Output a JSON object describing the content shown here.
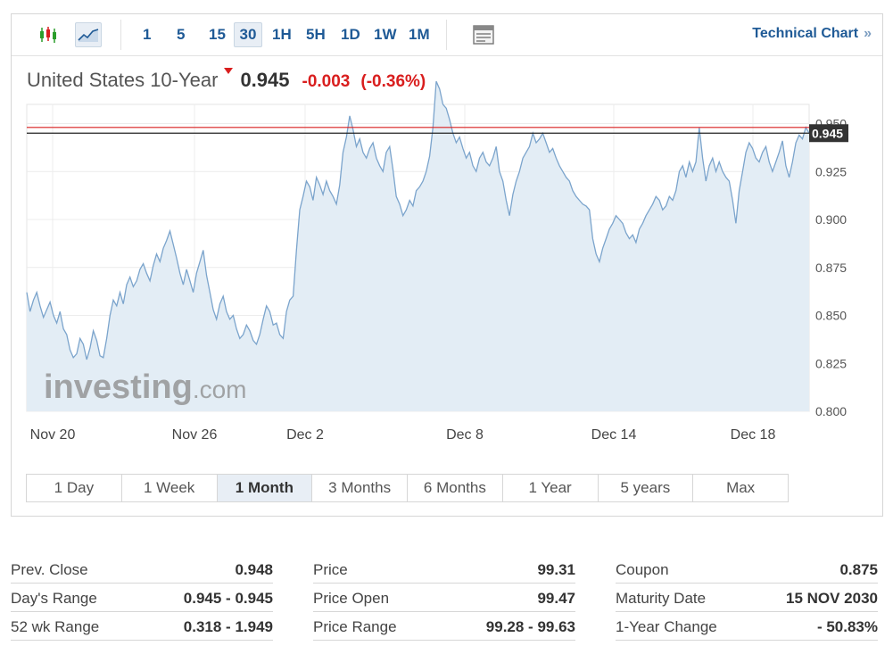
{
  "toolbar": {
    "icons": [
      "candlestick-icon",
      "line-chart-icon"
    ],
    "timeframes": [
      "1",
      "5",
      "15",
      "30",
      "1H",
      "5H",
      "1D",
      "1W",
      "1M"
    ],
    "active_timeframe": "30",
    "tech_link": "Technical Chart",
    "tech_chevron": "»"
  },
  "instrument": {
    "name": "United States 10-Year",
    "price": "0.945",
    "change": "-0.003",
    "change_pct": "(-0.36%)",
    "direction": "down"
  },
  "colors": {
    "accent": "#1f5a96",
    "down": "#d91e1e",
    "line": "#7ba4cc",
    "fill": "#e3edf5"
  },
  "watermark": {
    "brand": "investing",
    "suffix": ".com"
  },
  "chart_data": {
    "type": "area",
    "x_labels": [
      "Nov 20",
      "Nov 26",
      "Dec 2",
      "Dec 8",
      "Dec 14",
      "Dec 18"
    ],
    "y_ticks": [
      "0.800",
      "0.825",
      "0.850",
      "0.875",
      "0.900",
      "0.925",
      "0.950"
    ],
    "ylim": [
      0.8,
      0.96
    ],
    "current_value": 0.945,
    "current_label": "0.945",
    "prev_close": 0.948,
    "grid": true,
    "values": [
      0.862,
      0.852,
      0.858,
      0.862,
      0.855,
      0.849,
      0.853,
      0.857,
      0.85,
      0.846,
      0.852,
      0.843,
      0.84,
      0.832,
      0.828,
      0.83,
      0.838,
      0.835,
      0.827,
      0.833,
      0.842,
      0.837,
      0.829,
      0.828,
      0.838,
      0.85,
      0.858,
      0.855,
      0.862,
      0.856,
      0.866,
      0.87,
      0.865,
      0.868,
      0.874,
      0.877,
      0.872,
      0.868,
      0.876,
      0.882,
      0.878,
      0.885,
      0.889,
      0.894,
      0.887,
      0.88,
      0.872,
      0.866,
      0.874,
      0.868,
      0.862,
      0.872,
      0.878,
      0.884,
      0.871,
      0.862,
      0.853,
      0.848,
      0.856,
      0.86,
      0.852,
      0.848,
      0.85,
      0.843,
      0.838,
      0.84,
      0.845,
      0.842,
      0.837,
      0.835,
      0.84,
      0.848,
      0.855,
      0.852,
      0.845,
      0.846,
      0.84,
      0.838,
      0.852,
      0.858,
      0.86,
      0.884,
      0.905,
      0.912,
      0.92,
      0.917,
      0.91,
      0.922,
      0.918,
      0.913,
      0.92,
      0.915,
      0.912,
      0.908,
      0.918,
      0.935,
      0.943,
      0.954,
      0.947,
      0.938,
      0.942,
      0.935,
      0.932,
      0.937,
      0.94,
      0.932,
      0.928,
      0.925,
      0.935,
      0.938,
      0.926,
      0.912,
      0.908,
      0.902,
      0.905,
      0.91,
      0.907,
      0.915,
      0.917,
      0.92,
      0.925,
      0.933,
      0.948,
      0.972,
      0.968,
      0.96,
      0.958,
      0.952,
      0.945,
      0.94,
      0.943,
      0.937,
      0.932,
      0.935,
      0.928,
      0.925,
      0.932,
      0.935,
      0.93,
      0.928,
      0.932,
      0.938,
      0.925,
      0.92,
      0.91,
      0.902,
      0.913,
      0.92,
      0.925,
      0.932,
      0.935,
      0.938,
      0.945,
      0.94,
      0.942,
      0.945,
      0.94,
      0.935,
      0.937,
      0.932,
      0.928,
      0.925,
      0.922,
      0.92,
      0.915,
      0.912,
      0.91,
      0.908,
      0.907,
      0.905,
      0.89,
      0.882,
      0.878,
      0.885,
      0.89,
      0.895,
      0.898,
      0.902,
      0.9,
      0.898,
      0.893,
      0.89,
      0.892,
      0.888,
      0.895,
      0.898,
      0.902,
      0.905,
      0.908,
      0.912,
      0.91,
      0.905,
      0.907,
      0.912,
      0.91,
      0.915,
      0.925,
      0.928,
      0.922,
      0.93,
      0.925,
      0.93,
      0.948,
      0.932,
      0.92,
      0.928,
      0.932,
      0.925,
      0.93,
      0.925,
      0.922,
      0.92,
      0.91,
      0.898,
      0.915,
      0.925,
      0.935,
      0.94,
      0.937,
      0.932,
      0.93,
      0.935,
      0.938,
      0.93,
      0.925,
      0.93,
      0.935,
      0.941,
      0.928,
      0.922,
      0.93,
      0.94,
      0.944,
      0.942,
      0.948,
      0.945
    ]
  },
  "ranges": {
    "items": [
      "1 Day",
      "1 Week",
      "1 Month",
      "3 Months",
      "6 Months",
      "1 Year",
      "5 years",
      "Max"
    ],
    "active": "1 Month"
  },
  "stats": {
    "col1": [
      {
        "label": "Prev. Close",
        "value": "0.948"
      },
      {
        "label": "Day's Range",
        "value": "0.945 - 0.945"
      },
      {
        "label": "52 wk Range",
        "value": "0.318 - 1.949"
      }
    ],
    "col2": [
      {
        "label": "Price",
        "value": "99.31"
      },
      {
        "label": "Price Open",
        "value": "99.47"
      },
      {
        "label": "Price Range",
        "value": "99.28 - 99.63"
      }
    ],
    "col3": [
      {
        "label": "Coupon",
        "value": "0.875"
      },
      {
        "label": "Maturity Date",
        "value": "15 NOV 2030"
      },
      {
        "label": "1-Year Change",
        "value": "- 50.83%"
      }
    ]
  }
}
